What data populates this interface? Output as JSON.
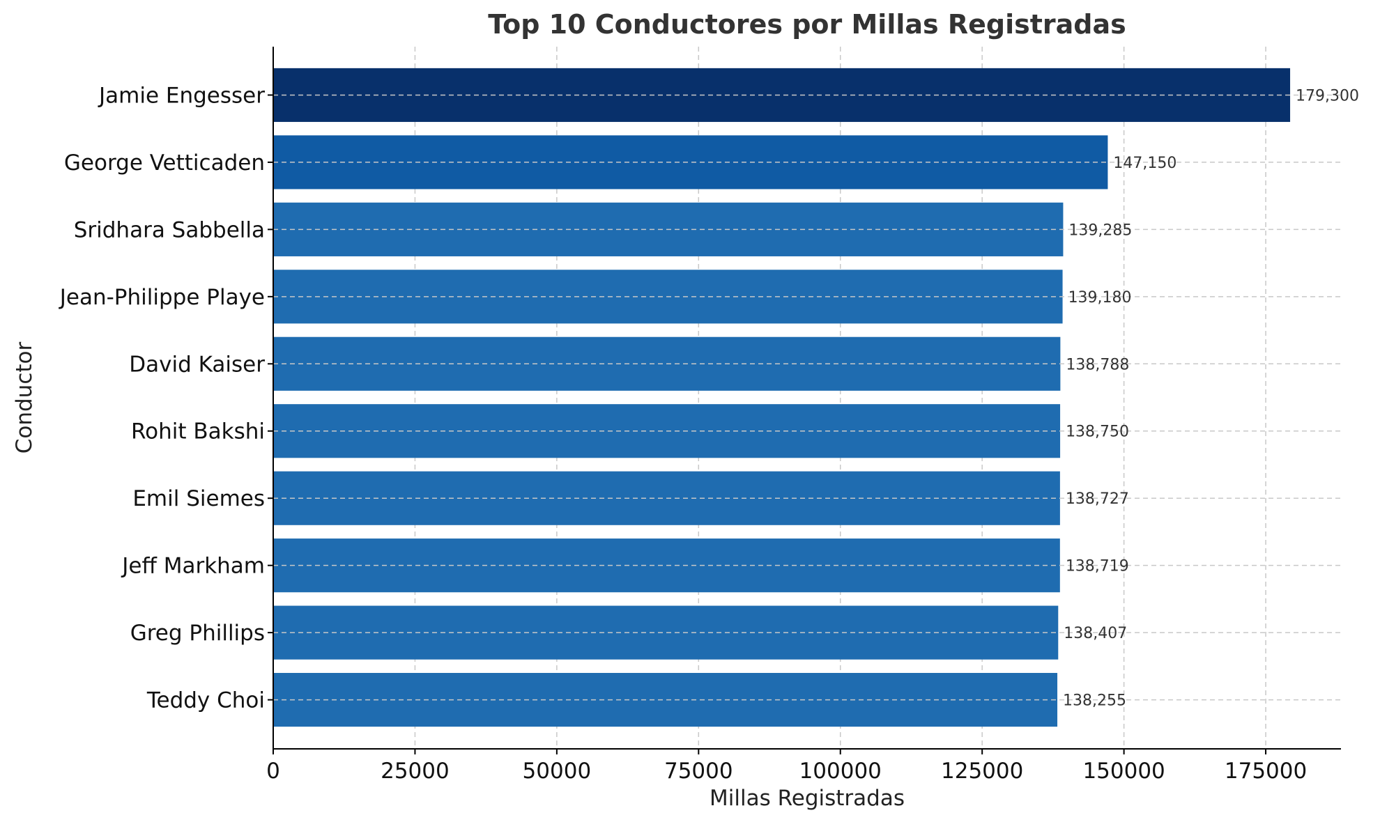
{
  "chart_data": {
    "type": "bar",
    "orientation": "horizontal",
    "title": "Top 10 Conductores por Millas Registradas",
    "xlabel": "Millas Registradas",
    "ylabel": "Conductor",
    "categories": [
      "Jamie Engesser",
      "George Vetticaden",
      "Sridhara Sabbella",
      "Jean-Philippe Playe",
      "David Kaiser",
      "Rohit Bakshi",
      "Emil Siemes",
      "Jeff Markham",
      "Greg Phillips",
      "Teddy Choi"
    ],
    "values": [
      179300,
      147150,
      139285,
      139180,
      138788,
      138750,
      138727,
      138719,
      138407,
      138255
    ],
    "value_labels": [
      "179,300",
      "147,150",
      "139,285",
      "139,180",
      "138,788",
      "138,750",
      "138,727",
      "138,719",
      "138,407",
      "138,255"
    ],
    "xlim": [
      0,
      188265
    ],
    "xticks": [
      0,
      25000,
      50000,
      75000,
      100000,
      125000,
      150000,
      175000
    ],
    "xtick_labels": [
      "0",
      "25000",
      "50000",
      "75000",
      "100000",
      "125000",
      "150000",
      "175000"
    ],
    "grid": true,
    "colors": {
      "bar_top": "#08306b",
      "bar_second": "#105ba4",
      "bar_default": "#1f6cb0",
      "grid": "#c8c8c8",
      "value_label": "#333333"
    }
  }
}
